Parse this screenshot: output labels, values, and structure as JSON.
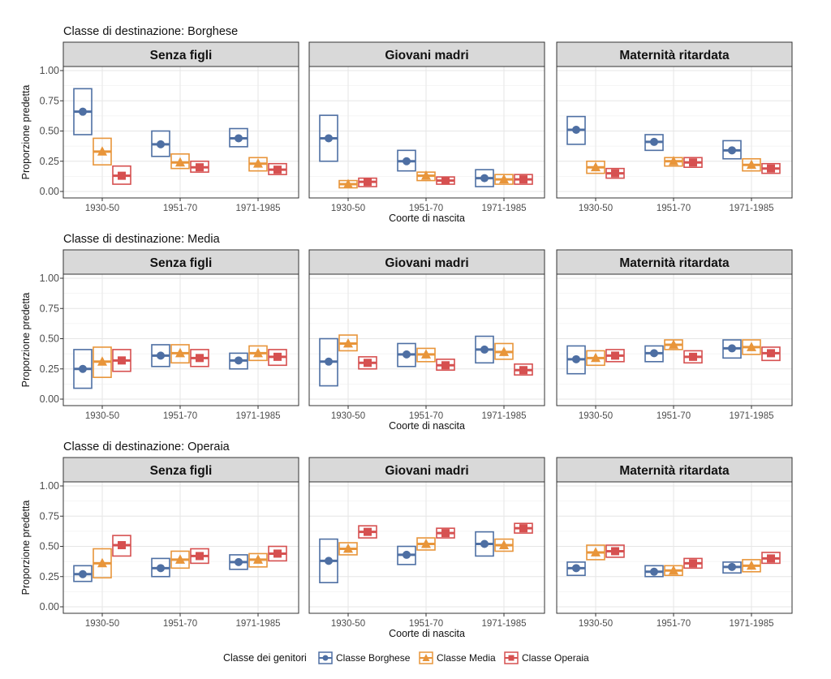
{
  "chart_data": {
    "type": "crossbar",
    "colors": {
      "Classe Borghese": "#4e6fa3",
      "Classe Media": "#e8953a",
      "Classe Operaia": "#d65050"
    },
    "shapes": {
      "Classe Borghese": "circle",
      "Classe Media": "triangle",
      "Classe Operaia": "square"
    },
    "categories": [
      "1930-50",
      "1951-70",
      "1971-1985"
    ],
    "series_names": [
      "Classe Borghese",
      "Classe Media",
      "Classe Operaia"
    ],
    "xlabel": "Coorte di nascita",
    "ylabel": "Proporzione predetta",
    "ylim": [
      0,
      1
    ],
    "yticks": [
      "0.00",
      "0.25",
      "0.50",
      "0.75",
      "1.00"
    ],
    "legend": {
      "title": "Classe dei genitori",
      "position": "bottom"
    },
    "rows": [
      {
        "title": "Classe di destinazione: Borghese",
        "panels": [
          {
            "strip": "Senza figli",
            "series": [
              {
                "name": "Classe Borghese",
                "est": [
                  0.66,
                  0.39,
                  0.44
                ],
                "lo": [
                  0.47,
                  0.29,
                  0.37
                ],
                "hi": [
                  0.85,
                  0.5,
                  0.52
                ]
              },
              {
                "name": "Classe Media",
                "est": [
                  0.33,
                  0.24,
                  0.23
                ],
                "lo": [
                  0.22,
                  0.19,
                  0.17
                ],
                "hi": [
                  0.44,
                  0.31,
                  0.28
                ]
              },
              {
                "name": "Classe Operaia",
                "est": [
                  0.13,
                  0.2,
                  0.18
                ],
                "lo": [
                  0.06,
                  0.16,
                  0.14
                ],
                "hi": [
                  0.21,
                  0.25,
                  0.23
                ]
              }
            ]
          },
          {
            "strip": "Giovani madri",
            "series": [
              {
                "name": "Classe Borghese",
                "est": [
                  0.44,
                  0.25,
                  0.11
                ],
                "lo": [
                  0.25,
                  0.17,
                  0.04
                ],
                "hi": [
                  0.63,
                  0.34,
                  0.18
                ]
              },
              {
                "name": "Classe Media",
                "est": [
                  0.06,
                  0.13,
                  0.1
                ],
                "lo": [
                  0.03,
                  0.09,
                  0.06
                ],
                "hi": [
                  0.09,
                  0.16,
                  0.14
                ]
              },
              {
                "name": "Classe Operaia",
                "est": [
                  0.08,
                  0.09,
                  0.1
                ],
                "lo": [
                  0.04,
                  0.06,
                  0.06
                ],
                "hi": [
                  0.11,
                  0.12,
                  0.14
                ]
              }
            ]
          },
          {
            "strip": "Maternità ritardata",
            "series": [
              {
                "name": "Classe Borghese",
                "est": [
                  0.51,
                  0.41,
                  0.34
                ],
                "lo": [
                  0.39,
                  0.34,
                  0.27
                ],
                "hi": [
                  0.62,
                  0.47,
                  0.42
                ]
              },
              {
                "name": "Classe Media",
                "est": [
                  0.2,
                  0.25,
                  0.22
                ],
                "lo": [
                  0.15,
                  0.21,
                  0.17
                ],
                "hi": [
                  0.25,
                  0.28,
                  0.27
                ]
              },
              {
                "name": "Classe Operaia",
                "est": [
                  0.15,
                  0.24,
                  0.19
                ],
                "lo": [
                  0.11,
                  0.2,
                  0.15
                ],
                "hi": [
                  0.19,
                  0.28,
                  0.23
                ]
              }
            ]
          }
        ]
      },
      {
        "title": "Classe di destinazione: Media",
        "panels": [
          {
            "strip": "Senza figli",
            "series": [
              {
                "name": "Classe Borghese",
                "est": [
                  0.25,
                  0.36,
                  0.32
                ],
                "lo": [
                  0.09,
                  0.27,
                  0.25
                ],
                "hi": [
                  0.41,
                  0.45,
                  0.38
                ]
              },
              {
                "name": "Classe Media",
                "est": [
                  0.31,
                  0.38,
                  0.38
                ],
                "lo": [
                  0.18,
                  0.3,
                  0.32
                ],
                "hi": [
                  0.43,
                  0.45,
                  0.44
                ]
              },
              {
                "name": "Classe Operaia",
                "est": [
                  0.32,
                  0.34,
                  0.35
                ],
                "lo": [
                  0.23,
                  0.27,
                  0.28
                ],
                "hi": [
                  0.41,
                  0.41,
                  0.41
                ]
              }
            ]
          },
          {
            "strip": "Giovani madri",
            "series": [
              {
                "name": "Classe Borghese",
                "est": [
                  0.31,
                  0.37,
                  0.41
                ],
                "lo": [
                  0.11,
                  0.27,
                  0.3
                ],
                "hi": [
                  0.5,
                  0.46,
                  0.52
                ]
              },
              {
                "name": "Classe Media",
                "est": [
                  0.46,
                  0.37,
                  0.39
                ],
                "lo": [
                  0.4,
                  0.31,
                  0.33
                ],
                "hi": [
                  0.53,
                  0.42,
                  0.46
                ]
              },
              {
                "name": "Classe Operaia",
                "est": [
                  0.3,
                  0.28,
                  0.24
                ],
                "lo": [
                  0.25,
                  0.24,
                  0.2
                ],
                "hi": [
                  0.35,
                  0.33,
                  0.29
                ]
              }
            ]
          },
          {
            "strip": "Maternità ritardata",
            "series": [
              {
                "name": "Classe Borghese",
                "est": [
                  0.33,
                  0.38,
                  0.42
                ],
                "lo": [
                  0.21,
                  0.31,
                  0.34
                ],
                "hi": [
                  0.44,
                  0.44,
                  0.49
                ]
              },
              {
                "name": "Classe Media",
                "est": [
                  0.34,
                  0.45,
                  0.43
                ],
                "lo": [
                  0.28,
                  0.41,
                  0.37
                ],
                "hi": [
                  0.4,
                  0.49,
                  0.49
                ]
              },
              {
                "name": "Classe Operaia",
                "est": [
                  0.36,
                  0.35,
                  0.38
                ],
                "lo": [
                  0.31,
                  0.3,
                  0.32
                ],
                "hi": [
                  0.41,
                  0.4,
                  0.43
                ]
              }
            ]
          }
        ]
      },
      {
        "title": "Classe di destinazione: Operaia",
        "panels": [
          {
            "strip": "Senza figli",
            "series": [
              {
                "name": "Classe Borghese",
                "est": [
                  0.27,
                  0.32,
                  0.37
                ],
                "lo": [
                  0.21,
                  0.25,
                  0.31
                ],
                "hi": [
                  0.34,
                  0.4,
                  0.43
                ]
              },
              {
                "name": "Classe Media",
                "est": [
                  0.36,
                  0.39,
                  0.39
                ],
                "lo": [
                  0.24,
                  0.32,
                  0.33
                ],
                "hi": [
                  0.48,
                  0.46,
                  0.44
                ]
              },
              {
                "name": "Classe Operaia",
                "est": [
                  0.51,
                  0.42,
                  0.44
                ],
                "lo": [
                  0.42,
                  0.36,
                  0.38
                ],
                "hi": [
                  0.59,
                  0.48,
                  0.5
                ]
              }
            ]
          },
          {
            "strip": "Giovani madri",
            "series": [
              {
                "name": "Classe Borghese",
                "est": [
                  0.38,
                  0.43,
                  0.52
                ],
                "lo": [
                  0.2,
                  0.35,
                  0.42
                ],
                "hi": [
                  0.56,
                  0.5,
                  0.62
                ]
              },
              {
                "name": "Classe Media",
                "est": [
                  0.48,
                  0.52,
                  0.51
                ],
                "lo": [
                  0.43,
                  0.47,
                  0.46
                ],
                "hi": [
                  0.53,
                  0.57,
                  0.56
                ]
              },
              {
                "name": "Classe Operaia",
                "est": [
                  0.62,
                  0.61,
                  0.65
                ],
                "lo": [
                  0.57,
                  0.57,
                  0.61
                ],
                "hi": [
                  0.67,
                  0.65,
                  0.69
                ]
              }
            ]
          },
          {
            "strip": "Maternità ritardata",
            "series": [
              {
                "name": "Classe Borghese",
                "est": [
                  0.32,
                  0.29,
                  0.33
                ],
                "lo": [
                  0.26,
                  0.25,
                  0.28
                ],
                "hi": [
                  0.37,
                  0.34,
                  0.37
                ]
              },
              {
                "name": "Classe Media",
                "est": [
                  0.45,
                  0.3,
                  0.34
                ],
                "lo": [
                  0.39,
                  0.26,
                  0.29
                ],
                "hi": [
                  0.51,
                  0.34,
                  0.39
                ]
              },
              {
                "name": "Classe Operaia",
                "est": [
                  0.46,
                  0.36,
                  0.4
                ],
                "lo": [
                  0.41,
                  0.32,
                  0.36
                ],
                "hi": [
                  0.51,
                  0.4,
                  0.45
                ]
              }
            ]
          }
        ]
      }
    ]
  }
}
